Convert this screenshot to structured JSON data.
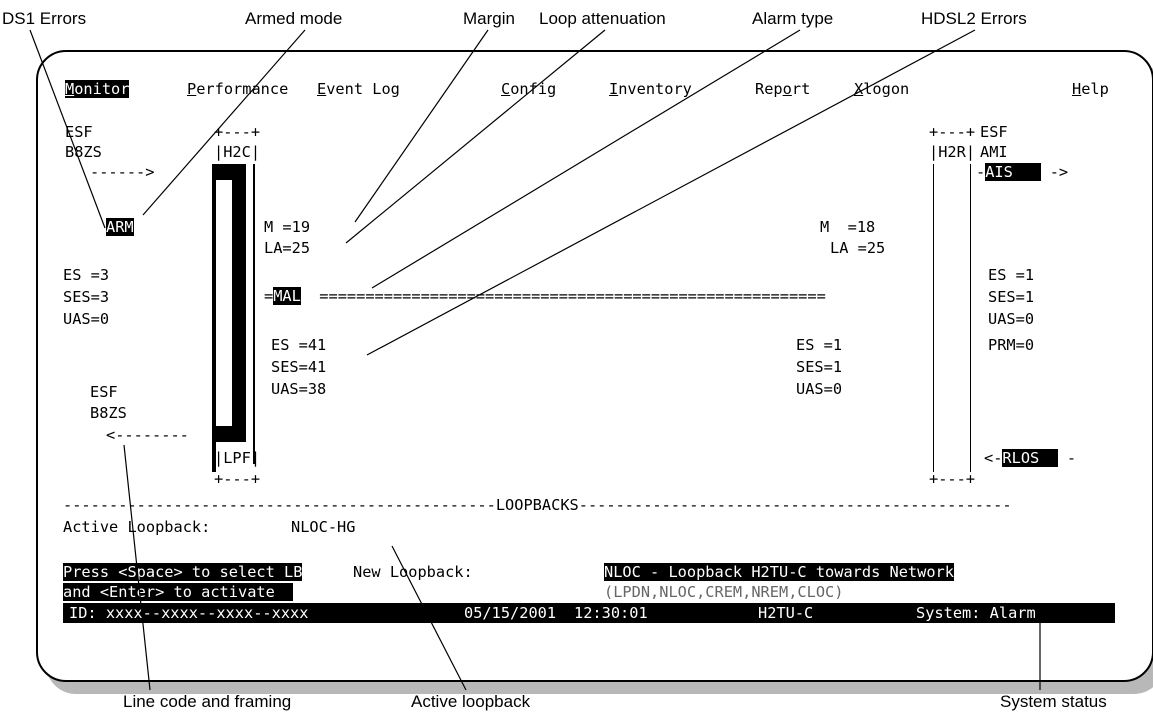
{
  "callouts": {
    "ds1_errors": "DS1 Errors",
    "armed_mode": "Armed mode",
    "margin": "Margin",
    "loop_attenuation": "Loop attenuation",
    "alarm_type": "Alarm type",
    "hdsl2_errors": "HDSL2 Errors",
    "line_code": "Line code and framing",
    "active_loopback": "Active loopback",
    "system_status": "System status"
  },
  "menu": {
    "monitor": {
      "key": "M",
      "rest": "onitor"
    },
    "performance": {
      "key": "P",
      "rest": "erformance"
    },
    "event_log": {
      "key": "E",
      "rest": "vent Log"
    },
    "config": {
      "key": "C",
      "rest": "onfig"
    },
    "inventory": {
      "key": "I",
      "rest": "nventory"
    },
    "report": {
      "pre": "Rep",
      "key": "o",
      "rest": "rt"
    },
    "logoff": {
      "key": "X",
      "rest": "logon"
    },
    "help": {
      "key": "H",
      "rest": "elp"
    }
  },
  "left": {
    "framing_top": "ESF",
    "linecode_top": "B8ZS",
    "arm": "ARM",
    "es": "ES =3",
    "ses": "SES=3",
    "uas": "UAS=0",
    "framing_bottom": "ESF",
    "linecode_bottom": "B8ZS"
  },
  "h2c": {
    "label": "H2C",
    "lpf": "LPF"
  },
  "h2r": {
    "label": "H2R"
  },
  "span_c": {
    "margin": "M =19",
    "attenuation": "LA=25",
    "alarm": "MAL",
    "es": "ES =41",
    "ses": "SES=41",
    "uas": "UAS=38"
  },
  "span_r": {
    "margin": "M  =18",
    "attenuation": "LA =25",
    "es": "ES =1",
    "ses": "SES=1",
    "uas": "UAS=0"
  },
  "right": {
    "framing": "ESF",
    "linecode": "AMI",
    "alarm_out": "AIS",
    "es": "ES =1",
    "ses": "SES=1",
    "uas": "UAS=0",
    "prm": "PRM=0",
    "alarm_in": "RLOS"
  },
  "loopbacks": {
    "header": "-----------------------------------------------LOOPBACKS-----------------------------------------------",
    "active_label": "Active Loopback:",
    "active_value": "NLOC-HG",
    "instruction_1": "Press <Space> to select LB",
    "instruction_2": "and <Enter> to activate",
    "new_label": "New Loopback:",
    "new_value": "NLOC - Loopback H2TU-C towards Network",
    "options": "(LPDN,NLOC,CREM,NREM,CLOC)"
  },
  "status": {
    "id": "ID: xxxx--xxxx--xxxx--xxxx",
    "date": "05/15/2001",
    "time": "12:30:01",
    "unit": "H2TU-C",
    "system": "System: Alarm"
  }
}
